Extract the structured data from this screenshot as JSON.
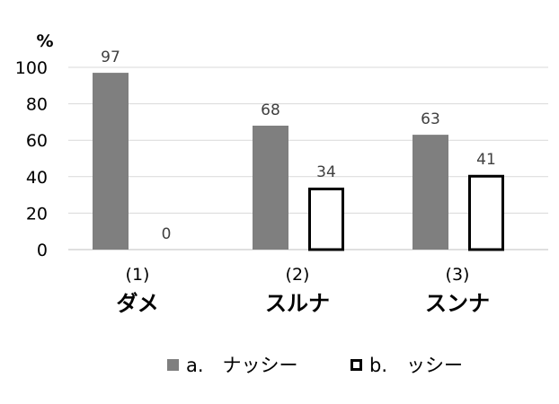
{
  "chart_data": {
    "type": "bar",
    "unit_label": "%",
    "categories": [
      {
        "number": "(1)",
        "name": "ダメ"
      },
      {
        "number": "(2)",
        "name": "スルナ"
      },
      {
        "number": "(3)",
        "name": "スンナ"
      }
    ],
    "series": [
      {
        "name": "a.　ナッシー",
        "values": [
          97,
          68,
          63
        ],
        "color": "#7f7f7f",
        "style": "filled"
      },
      {
        "name": "b.　ッシー",
        "values": [
          0,
          34,
          41
        ],
        "color": "#000000",
        "style": "outline"
      }
    ],
    "ylim": [
      0,
      100
    ],
    "yticks": [
      "0",
      "20",
      "40",
      "60",
      "80",
      "100"
    ],
    "grid": true,
    "legend_position": "bottom"
  }
}
